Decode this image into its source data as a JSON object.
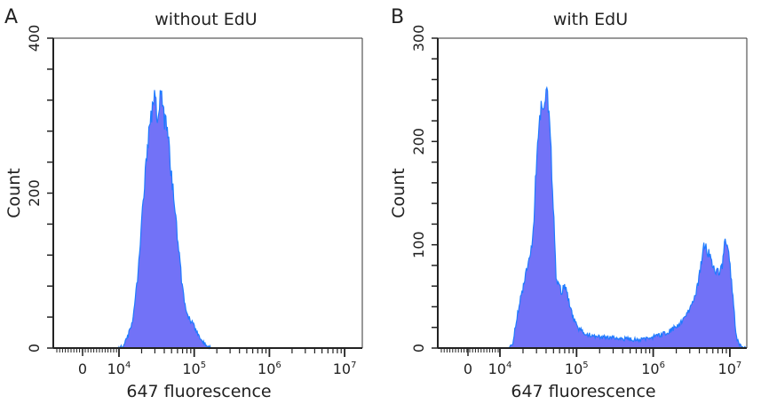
{
  "chart_data": [
    {
      "type": "area",
      "panel_label": "A",
      "title": "without EdU",
      "xlabel": "647 fluorescence",
      "ylabel": "Count",
      "x_scale": "biexponential (log10 above 10^4)",
      "xtick_labels": [
        "0",
        "10^4",
        "10^5",
        "10^6",
        "10^7"
      ],
      "ytick_labels": [
        "0",
        "200",
        "400"
      ],
      "ylim": [
        0,
        400
      ],
      "y_minor_step": 40,
      "fill_color": "#7272f7",
      "line_color": "#1f7bff",
      "series": {
        "x_log10": [
          4.0,
          4.05,
          4.12,
          4.19,
          4.25,
          4.3,
          4.35,
          4.39,
          4.43,
          4.46,
          4.49,
          4.52,
          4.55,
          4.57,
          4.6,
          4.63,
          4.66,
          4.7,
          4.74,
          4.77,
          4.81,
          4.84,
          4.87,
          4.9,
          4.95,
          4.99,
          5.03,
          5.07,
          5.12,
          5.17,
          5.22
        ],
        "count": [
          0,
          2,
          15,
          40,
          95,
          160,
          225,
          270,
          300,
          330,
          310,
          300,
          320,
          335,
          290,
          285,
          270,
          220,
          190,
          150,
          110,
          80,
          60,
          42,
          35,
          30,
          22,
          15,
          8,
          2,
          0
        ]
      }
    },
    {
      "type": "area",
      "panel_label": "B",
      "title": "with EdU",
      "xlabel": "647 fluorescence",
      "ylabel": "Count",
      "x_scale": "biexponential (log10 above 10^4)",
      "xtick_labels": [
        "0",
        "10^4",
        "10^5",
        "10^6",
        "10^7"
      ],
      "ytick_labels": [
        "0",
        "100",
        "200",
        "300"
      ],
      "ylim": [
        0,
        300
      ],
      "y_minor_step": 20,
      "fill_color": "#7272f7",
      "line_color": "#1f7bff",
      "series": {
        "x_log10": [
          4.12,
          4.17,
          4.22,
          4.26,
          4.31,
          4.37,
          4.43,
          4.49,
          4.55,
          4.6,
          4.63,
          4.66,
          4.7,
          4.73,
          4.77,
          4.8,
          4.85,
          4.9,
          4.95,
          5.01,
          5.1,
          5.19,
          5.3,
          5.48,
          5.65,
          5.83,
          5.95,
          6.06,
          6.18,
          6.29,
          6.41,
          6.52,
          6.58,
          6.62,
          6.66,
          6.7,
          6.73,
          6.77,
          6.81,
          6.86,
          6.9,
          6.94,
          6.97,
          6.99,
          7.02,
          7.05,
          7.08,
          7.12,
          7.16,
          7.2
        ],
        "count": [
          0,
          5,
          30,
          45,
          62,
          85,
          105,
          205,
          240,
          245,
          235,
          200,
          130,
          70,
          60,
          55,
          60,
          45,
          30,
          20,
          14,
          12,
          11,
          10,
          9,
          8,
          10,
          12,
          15,
          20,
          28,
          45,
          60,
          80,
          100,
          95,
          90,
          80,
          75,
          72,
          80,
          105,
          95,
          90,
          65,
          40,
          12,
          3,
          1,
          0
        ]
      }
    }
  ]
}
